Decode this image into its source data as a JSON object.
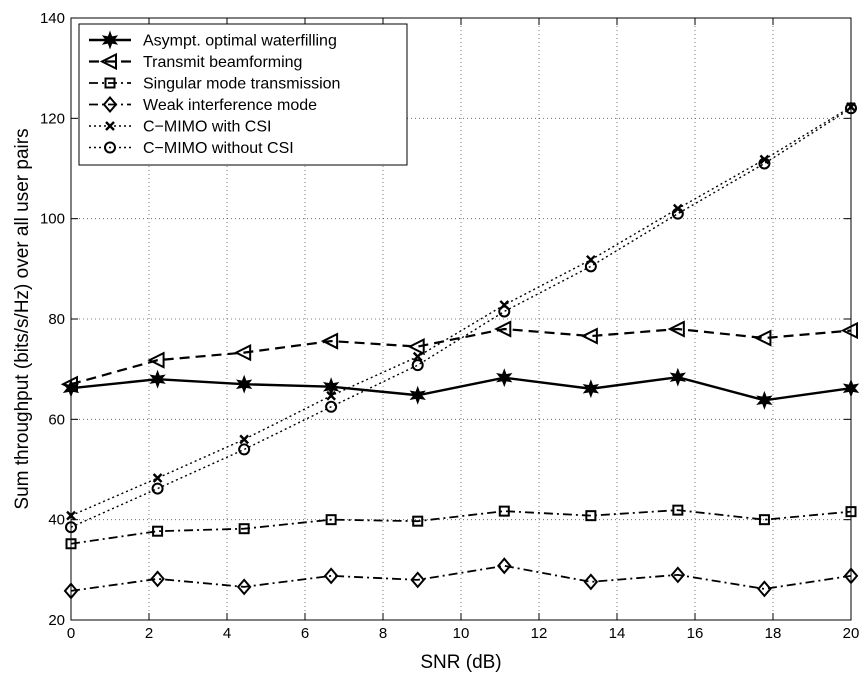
{
  "chart_data": {
    "type": "line",
    "xlabel": "SNR (dB)",
    "ylabel": "Sum throughput (bits/s/Hz) over all user pairs",
    "xlim": [
      0,
      20
    ],
    "ylim": [
      20,
      140
    ],
    "xticks": [
      0,
      2,
      4,
      6,
      8,
      10,
      12,
      14,
      16,
      18,
      20
    ],
    "yticks": [
      20,
      40,
      60,
      80,
      100,
      120,
      140
    ],
    "grid": true,
    "legend_position": "top-left",
    "x": [
      0,
      2.22,
      4.44,
      6.67,
      8.89,
      11.11,
      13.33,
      15.56,
      17.78,
      20
    ],
    "series": [
      {
        "name": "Asympt. optimal waterfilling",
        "marker": "star",
        "dash": "solid",
        "values": [
          66.2,
          68.0,
          67.0,
          66.5,
          64.8,
          68.3,
          66.1,
          68.4,
          63.8,
          66.2
        ]
      },
      {
        "name": "Transmit beamforming",
        "marker": "triangle-left",
        "dash": "dashed",
        "values": [
          67.0,
          71.8,
          73.3,
          75.6,
          74.5,
          78.0,
          76.6,
          78.0,
          76.2,
          77.7
        ]
      },
      {
        "name": "Singular mode transmission",
        "marker": "square",
        "dash": "dashdot",
        "values": [
          35.2,
          37.7,
          38.2,
          40.0,
          39.7,
          41.7,
          40.8,
          41.9,
          40.0,
          41.6
        ]
      },
      {
        "name": "Weak interference mode",
        "marker": "diamond",
        "dash": "dashdot",
        "values": [
          25.8,
          28.2,
          26.6,
          28.8,
          28.0,
          30.8,
          27.6,
          29.0,
          26.2,
          28.8
        ]
      },
      {
        "name": "C−MIMO with CSI",
        "marker": "x",
        "dash": "dotted",
        "values": [
          40.8,
          48.3,
          56.0,
          64.7,
          72.5,
          82.8,
          91.8,
          102.0,
          111.8,
          122.3
        ]
      },
      {
        "name": "C−MIMO without CSI",
        "marker": "circle",
        "dash": "dotted",
        "values": [
          38.5,
          46.2,
          54.0,
          62.5,
          70.8,
          81.5,
          90.5,
          101.0,
          111.0,
          122.0
        ]
      }
    ]
  }
}
